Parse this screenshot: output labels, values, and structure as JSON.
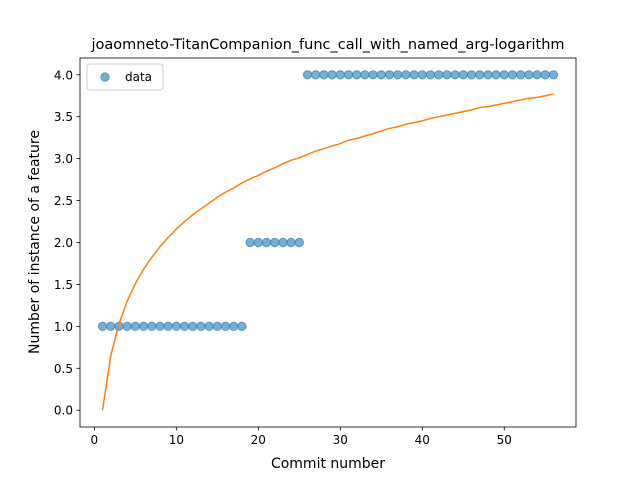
{
  "chart_data": {
    "type": "scatter",
    "title": "joaomneto-TitanCompanion_func_call_with_named_arg-logarithm",
    "xlabel": "Commit number",
    "ylabel": "Number of instance of a feature",
    "xlim": [
      -1.75,
      58.75
    ],
    "ylim": [
      -0.2,
      4.2
    ],
    "xticks": [
      0,
      10,
      20,
      30,
      40,
      50
    ],
    "yticks": [
      0.0,
      0.5,
      1.0,
      1.5,
      2.0,
      2.5,
      3.0,
      3.5,
      4.0
    ],
    "ytick_labels": [
      "0.0",
      "0.5",
      "1.0",
      "1.5",
      "2.0",
      "2.5",
      "3.0",
      "3.5",
      "4.0"
    ],
    "legend": {
      "position": "upper-left",
      "entries": [
        "data"
      ]
    },
    "series": [
      {
        "name": "data",
        "kind": "scatter",
        "color": "#1f77b4",
        "x": [
          1,
          2,
          3,
          4,
          5,
          6,
          7,
          8,
          9,
          10,
          11,
          12,
          13,
          14,
          15,
          16,
          17,
          18,
          19,
          20,
          21,
          22,
          23,
          24,
          25,
          26,
          27,
          28,
          29,
          30,
          31,
          32,
          33,
          34,
          35,
          36,
          37,
          38,
          39,
          40,
          41,
          42,
          43,
          44,
          45,
          46,
          47,
          48,
          49,
          50,
          51,
          52,
          53,
          54,
          55,
          56
        ],
        "y": [
          1,
          1,
          1,
          1,
          1,
          1,
          1,
          1,
          1,
          1,
          1,
          1,
          1,
          1,
          1,
          1,
          1,
          1,
          2,
          2,
          2,
          2,
          2,
          2,
          2,
          4,
          4,
          4,
          4,
          4,
          4,
          4,
          4,
          4,
          4,
          4,
          4,
          4,
          4,
          4,
          4,
          4,
          4,
          4,
          4,
          4,
          4,
          4,
          4,
          4,
          4,
          4,
          4,
          4,
          4,
          4
        ]
      },
      {
        "kind": "line",
        "color": "#ff7f0e",
        "x": [
          1,
          2,
          3,
          4,
          5,
          6,
          7,
          8,
          9,
          10,
          11,
          12,
          13,
          14,
          15,
          16,
          17,
          18,
          19,
          20,
          21,
          22,
          23,
          24,
          25,
          26,
          27,
          28,
          29,
          30,
          31,
          32,
          33,
          34,
          35,
          36,
          37,
          38,
          39,
          40,
          41,
          42,
          43,
          44,
          45,
          46,
          47,
          48,
          49,
          50,
          51,
          52,
          53,
          54,
          55,
          56
        ],
        "y": [
          0,
          0.649,
          1.03,
          1.3,
          1.51,
          1.68,
          1.82,
          1.95,
          2.06,
          2.16,
          2.25,
          2.33,
          2.4,
          2.47,
          2.54,
          2.6,
          2.65,
          2.71,
          2.76,
          2.8,
          2.85,
          2.89,
          2.94,
          2.98,
          3.01,
          3.05,
          3.09,
          3.12,
          3.15,
          3.18,
          3.22,
          3.24,
          3.27,
          3.3,
          3.33,
          3.36,
          3.38,
          3.41,
          3.43,
          3.45,
          3.48,
          3.5,
          3.52,
          3.54,
          3.56,
          3.58,
          3.61,
          3.62,
          3.64,
          3.66,
          3.68,
          3.7,
          3.72,
          3.73,
          3.75,
          3.77
        ]
      }
    ]
  }
}
